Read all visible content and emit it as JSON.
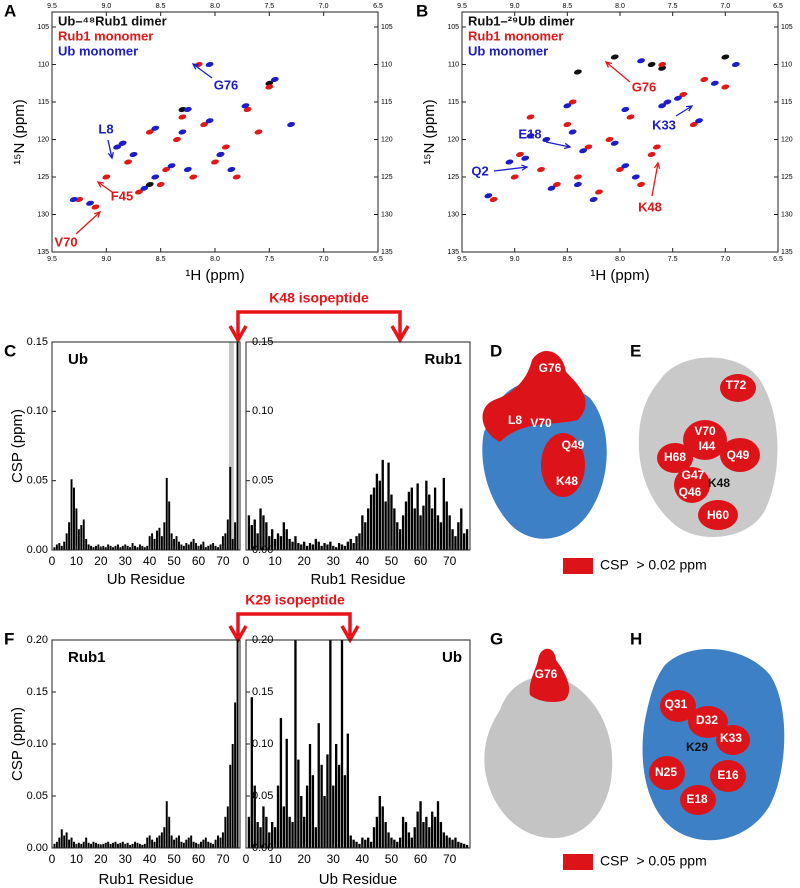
{
  "panels": [
    "A",
    "B",
    "C",
    "D",
    "E",
    "F",
    "G",
    "H"
  ],
  "isopeptides": [
    "K48 isopeptide",
    "K29 isopeptide"
  ],
  "structures": {
    "D": [
      "G76",
      "L8",
      "V70",
      "Q49",
      "K48"
    ],
    "E": [
      "T72",
      "V70",
      "I44",
      "H68",
      "Q49",
      "G47",
      "K48",
      "Q46",
      "H60"
    ],
    "G": [
      "G76"
    ],
    "H": [
      "Q31",
      "D32",
      "K29",
      "K33",
      "N25",
      "E16",
      "E18"
    ]
  },
  "csp_legends": [
    "CSP  > 0.02 ppm",
    "CSP  > 0.05 ppm"
  ],
  "chart_data": [
    {
      "type": "scatter",
      "xlabel": "¹H (ppm)",
      "ylabel": "¹⁵N (ppm)",
      "xlim": [
        9.5,
        6.5
      ],
      "ylim": [
        135,
        103
      ],
      "xticks": [
        9.5,
        {
          "value": 9,
          "label": "9.0"
        },
        8.5,
        {
          "value": 8,
          "label": "8.0"
        },
        7.5,
        {
          "value": 7,
          "label": "7.0"
        },
        6.5
      ],
      "yticks": [
        105,
        110,
        115,
        120,
        125,
        130,
        135
      ],
      "series": [
        {
          "name": "Ub–⁴⁸Rub1 dimer",
          "color": "#111111",
          "x": [
            8.85,
            8.3,
            7.95,
            7.5,
            8.6
          ],
          "y": [
            120.5,
            116,
            122,
            112.5,
            126
          ]
        },
        {
          "name": "Rub1 monomer",
          "color": "#e01818",
          "x": [
            8.9,
            8.6,
            8.3,
            8.1,
            7.9,
            7.7,
            7.5,
            8.45,
            8.2,
            8.8,
            9.1,
            9.25,
            8.5,
            8.0,
            7.8,
            8.35,
            8.7,
            9.0,
            7.6,
            8.15
          ],
          "y": [
            121,
            119,
            117,
            118,
            121,
            116,
            113,
            124,
            125,
            123,
            129,
            128,
            126,
            123,
            125,
            120,
            127,
            125,
            119,
            110
          ]
        },
        {
          "name": "Ub monomer",
          "color": "#1c1cc8",
          "x": [
            8.85,
            8.55,
            8.25,
            8.05,
            7.95,
            7.72,
            7.45,
            8.4,
            8.25,
            8.75,
            9.15,
            9.3,
            8.55,
            7.95,
            7.85,
            8.3,
            8.65,
            8.9,
            7.3,
            8.05
          ],
          "y": [
            120.5,
            118.5,
            116,
            117.5,
            122,
            115.5,
            112,
            123.5,
            124,
            122,
            128.5,
            128,
            125,
            122,
            124,
            119,
            126.5,
            121,
            118,
            110
          ]
        }
      ],
      "annotations": [
        {
          "text": "L8",
          "color": "#1c1cc8"
        },
        {
          "text": "G76",
          "color": "#1c1cc8"
        },
        {
          "text": "F45",
          "color": "#e01818"
        },
        {
          "text": "V70",
          "color": "#e01818"
        }
      ]
    },
    {
      "type": "scatter",
      "xlabel": "¹H (ppm)",
      "ylabel": "¹⁵N (ppm)",
      "xlim": [
        9.5,
        6.5
      ],
      "ylim": [
        135,
        103
      ],
      "xticks": [
        9.5,
        {
          "value": 9,
          "label": "9.0"
        },
        8.5,
        {
          "value": 8,
          "label": "8.0"
        },
        7.5,
        {
          "value": 7,
          "label": "7.0"
        },
        6.5
      ],
      "yticks": [
        105,
        110,
        115,
        120,
        125,
        130,
        135
      ],
      "series": [
        {
          "name": "Rub1–²⁹Ub dimer",
          "color": "#111111",
          "x": [
            8.05,
            7.7,
            7.6,
            7.0,
            8.4
          ],
          "y": [
            109,
            110,
            110.5,
            109,
            111
          ]
        },
        {
          "name": "Rub1 monomer",
          "color": "#e01818",
          "x": [
            8.95,
            8.75,
            8.5,
            8.3,
            8.1,
            7.9,
            7.7,
            7.6,
            7.4,
            7.2,
            7.0,
            8.6,
            8.4,
            8.2,
            8.0,
            7.8,
            9.2,
            9.0,
            8.85,
            8.45,
            7.65,
            7.3
          ],
          "y": [
            122,
            124,
            118,
            121,
            120,
            117,
            122,
            110,
            114,
            112,
            113,
            126,
            125,
            127,
            124,
            126,
            128,
            125,
            117,
            115,
            121,
            118
          ]
        },
        {
          "name": "Ub monomer",
          "color": "#1c1cc8",
          "x": [
            8.9,
            8.7,
            8.45,
            8.35,
            8.05,
            7.95,
            7.6,
            7.8,
            7.45,
            7.1,
            6.9,
            8.65,
            8.4,
            8.25,
            7.95,
            7.85,
            9.25,
            9.05,
            8.85,
            8.5,
            7.55,
            7.25
          ],
          "y": [
            122.5,
            120,
            119,
            121.5,
            120.5,
            116,
            115.5,
            109.5,
            114.5,
            112.5,
            110,
            126.5,
            126,
            128,
            123.5,
            125,
            127.5,
            123,
            119.5,
            115.5,
            115,
            117.5
          ]
        }
      ],
      "annotations": [
        {
          "text": "G76",
          "color": "#e01818"
        },
        {
          "text": "K33",
          "color": "#1c1cc8"
        },
        {
          "text": "E18",
          "color": "#1c1cc8"
        },
        {
          "text": "Q2",
          "color": "#1c1cc8"
        },
        {
          "text": "K48",
          "color": "#e01818"
        }
      ]
    },
    {
      "type": "bar",
      "title": "Ub",
      "xlabel": "Ub Residue",
      "ylabel": "CSP (ppm)",
      "color": "#000000",
      "xlim": [
        0,
        77
      ],
      "ylim": [
        0,
        0.15
      ],
      "xticks": [
        0,
        10,
        20,
        30,
        40,
        50,
        60,
        70
      ],
      "yticks": [
        {
          "value": 0,
          "label": "0.00"
        },
        {
          "value": 0.05,
          "label": "0.05"
        },
        {
          "value": 0.1,
          "label": "0.10"
        },
        {
          "value": 0.15,
          "label": "0.15"
        }
      ],
      "shade": [
        72.5,
        74.5
      ],
      "x": [
        1,
        2,
        3,
        4,
        5,
        6,
        7,
        8,
        9,
        10,
        11,
        12,
        13,
        14,
        15,
        16,
        17,
        18,
        19,
        20,
        21,
        22,
        23,
        24,
        25,
        26,
        27,
        28,
        29,
        30,
        31,
        32,
        33,
        34,
        35,
        36,
        37,
        38,
        39,
        40,
        41,
        42,
        43,
        44,
        45,
        46,
        47,
        48,
        49,
        50,
        51,
        52,
        53,
        54,
        55,
        56,
        57,
        58,
        59,
        60,
        61,
        62,
        63,
        64,
        65,
        66,
        67,
        68,
        69,
        70,
        71,
        72,
        73,
        74,
        75,
        76
      ],
      "values": [
        0.002,
        0.004,
        0.005,
        0.003,
        0.006,
        0.012,
        0.02,
        0.051,
        0.045,
        0.03,
        0.015,
        0.018,
        0.022,
        0.008,
        0.004,
        0.003,
        0.002,
        0.003,
        0.004,
        0.002,
        0.003,
        0.002,
        0.004,
        0.003,
        0.002,
        0.003,
        0.004,
        0.002,
        0.003,
        0.004,
        0.003,
        0.002,
        0.005,
        0.003,
        0.002,
        0.004,
        0.003,
        0.002,
        0.003,
        0.01,
        0.012,
        0.008,
        0.014,
        0.016,
        0.01,
        0.02,
        0.052,
        0.035,
        0.012,
        0.008,
        0.01,
        0.006,
        0.004,
        0.003,
        0.005,
        0.004,
        0.006,
        0.008,
        0.005,
        0.003,
        0.004,
        0.006,
        0.002,
        0.003,
        0.004,
        0.005,
        0.003,
        0.002,
        0.004,
        0.01,
        0.012,
        0.022,
        0.06,
        0.008,
        0.02,
        0.15
      ]
    },
    {
      "type": "bar",
      "title": "Rub1",
      "xlabel": "Rub1 Residue",
      "color": "#000000",
      "xlim": [
        0,
        77
      ],
      "ylim": [
        0,
        0.15
      ],
      "xticks": [
        0,
        10,
        20,
        30,
        40,
        50,
        60,
        70
      ],
      "yticks": [
        {
          "value": 0,
          "label": "0.00"
        },
        {
          "value": 0.05,
          "label": "0.05"
        },
        {
          "value": 0.1,
          "label": "0.10"
        },
        {
          "value": 0.15,
          "label": "0.15"
        }
      ],
      "x": [
        1,
        2,
        3,
        4,
        5,
        6,
        7,
        8,
        9,
        10,
        11,
        12,
        13,
        14,
        15,
        16,
        17,
        18,
        19,
        20,
        21,
        22,
        23,
        24,
        25,
        26,
        27,
        28,
        29,
        30,
        31,
        32,
        33,
        34,
        35,
        36,
        37,
        38,
        39,
        40,
        41,
        42,
        43,
        44,
        45,
        46,
        47,
        48,
        49,
        50,
        51,
        52,
        53,
        54,
        55,
        56,
        57,
        58,
        59,
        60,
        61,
        62,
        63,
        64,
        65,
        66,
        67,
        68,
        69,
        70,
        71,
        72,
        73,
        74,
        75,
        76
      ],
      "values": [
        0.025,
        0.018,
        0.022,
        0.012,
        0.03,
        0.025,
        0.02,
        0.01,
        0.015,
        0.008,
        0.012,
        0.01,
        0.02,
        0.015,
        0.008,
        0.006,
        0.01,
        0.005,
        0.004,
        0.006,
        0.003,
        0.005,
        0.004,
        0.008,
        0.006,
        0.003,
        0.005,
        0.004,
        0.006,
        0.003,
        0.002,
        0.005,
        0.004,
        0.003,
        0.006,
        0.008,
        0.005,
        0.01,
        0.012,
        0.025,
        0.02,
        0.03,
        0.04,
        0.045,
        0.055,
        0.05,
        0.065,
        0.035,
        0.063,
        0.04,
        0.03,
        0.02,
        0.015,
        0.025,
        0.035,
        0.042,
        0.045,
        0.03,
        0.048,
        0.025,
        0.032,
        0.05,
        0.04,
        0.03,
        0.045,
        0.025,
        0.02,
        0.052,
        0.035,
        0.025,
        0.015,
        0.01,
        0.02,
        0.03,
        0.012,
        0.015
      ]
    },
    {
      "type": "bar",
      "title": "Rub1",
      "xlabel": "Rub1 Residue",
      "ylabel": "CSP (ppm)",
      "color": "#000000",
      "xlim": [
        0,
        77
      ],
      "ylim": [
        0,
        0.2
      ],
      "xticks": [
        0,
        10,
        20,
        30,
        40,
        50,
        60,
        70
      ],
      "yticks": [
        {
          "value": 0,
          "label": "0.00"
        },
        {
          "value": 0.05,
          "label": "0.05"
        },
        {
          "value": 0.1,
          "label": "0.10"
        },
        {
          "value": 0.15,
          "label": "0.15"
        },
        {
          "value": 0.2,
          "label": "0.20"
        }
      ],
      "x": [
        1,
        2,
        3,
        4,
        5,
        6,
        7,
        8,
        9,
        10,
        11,
        12,
        13,
        14,
        15,
        16,
        17,
        18,
        19,
        20,
        21,
        22,
        23,
        24,
        25,
        26,
        27,
        28,
        29,
        30,
        31,
        32,
        33,
        34,
        35,
        36,
        37,
        38,
        39,
        40,
        41,
        42,
        43,
        44,
        45,
        46,
        47,
        48,
        49,
        50,
        51,
        52,
        53,
        54,
        55,
        56,
        57,
        58,
        59,
        60,
        61,
        62,
        63,
        64,
        65,
        66,
        67,
        68,
        69,
        70,
        71,
        72,
        73,
        74,
        75,
        76
      ],
      "values": [
        0.004,
        0.006,
        0.01,
        0.018,
        0.012,
        0.015,
        0.008,
        0.01,
        0.006,
        0.004,
        0.005,
        0.004,
        0.006,
        0.01,
        0.005,
        0.004,
        0.006,
        0.005,
        0.004,
        0.003,
        0.004,
        0.005,
        0.006,
        0.004,
        0.005,
        0.006,
        0.004,
        0.005,
        0.006,
        0.004,
        0.005,
        0.003,
        0.004,
        0.006,
        0.005,
        0.004,
        0.003,
        0.004,
        0.01,
        0.012,
        0.008,
        0.006,
        0.01,
        0.012,
        0.015,
        0.02,
        0.045,
        0.03,
        0.012,
        0.008,
        0.01,
        0.012,
        0.006,
        0.005,
        0.008,
        0.01,
        0.012,
        0.006,
        0.005,
        0.004,
        0.006,
        0.008,
        0.01,
        0.006,
        0.005,
        0.004,
        0.008,
        0.012,
        0.01,
        0.015,
        0.03,
        0.04,
        0.08,
        0.1,
        0.14,
        0.2
      ]
    },
    {
      "type": "bar",
      "title": "Ub",
      "xlabel": "Ub Residue",
      "color": "#000000",
      "xlim": [
        0,
        77
      ],
      "ylim": [
        0,
        0.2
      ],
      "xticks": [
        0,
        10,
        20,
        30,
        40,
        50,
        60,
        70
      ],
      "yticks": [
        {
          "value": 0,
          "label": "0.00"
        },
        {
          "value": 0.05,
          "label": "0.05"
        },
        {
          "value": 0.1,
          "label": "0.10"
        },
        {
          "value": 0.15,
          "label": "0.15"
        },
        {
          "value": 0.2,
          "label": "0.20"
        }
      ],
      "x": [
        1,
        2,
        3,
        4,
        5,
        6,
        7,
        8,
        9,
        10,
        11,
        12,
        13,
        14,
        15,
        16,
        17,
        18,
        19,
        20,
        21,
        22,
        23,
        24,
        25,
        26,
        27,
        28,
        29,
        30,
        31,
        32,
        33,
        34,
        35,
        36,
        37,
        38,
        39,
        40,
        41,
        42,
        43,
        44,
        45,
        46,
        47,
        48,
        49,
        50,
        51,
        52,
        53,
        54,
        55,
        56,
        57,
        58,
        59,
        60,
        61,
        62,
        63,
        64,
        65,
        66,
        67,
        68,
        69,
        70,
        71,
        72,
        73,
        74,
        75,
        76
      ],
      "values": [
        0.03,
        0.145,
        0.06,
        0.025,
        0.02,
        0.04,
        0.03,
        0.015,
        0.025,
        0.02,
        0.06,
        0.125,
        0.04,
        0.105,
        0.03,
        0.025,
        0.2,
        0.085,
        0.05,
        0.03,
        0.06,
        0.1,
        0.07,
        0.02,
        0.12,
        0.08,
        0.05,
        0.09,
        0.2,
        0.06,
        0.1,
        0.08,
        0.2,
        0.07,
        0.11,
        0.012,
        0.008,
        0.006,
        0.004,
        0.01,
        0.008,
        0.01,
        0.006,
        0.02,
        0.03,
        0.05,
        0.04,
        0.025,
        0.015,
        0.01,
        0.008,
        0.006,
        0.01,
        0.03,
        0.025,
        0.015,
        0.01,
        0.02,
        0.035,
        0.045,
        0.025,
        0.03,
        0.02,
        0.035,
        0.03,
        0.045,
        0.025,
        0.015,
        0.012,
        0.01,
        0.008,
        0.01,
        0.006,
        0.005,
        0.004,
        0.003
      ]
    }
  ]
}
